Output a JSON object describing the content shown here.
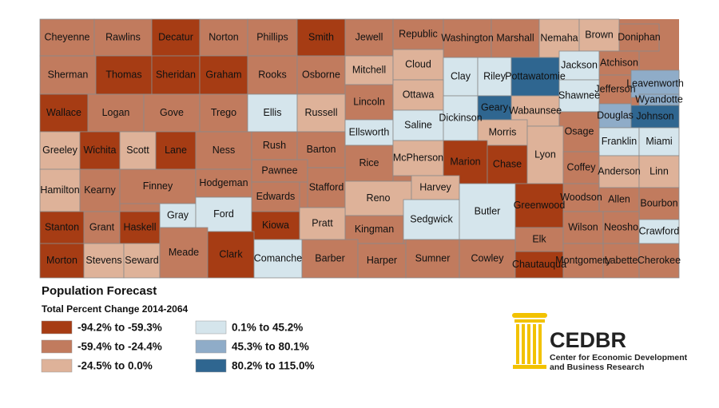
{
  "map": {
    "counties": [
      {
        "name": "Cheyenne",
        "color": "#c17b5e"
      },
      {
        "name": "Rawlins",
        "color": "#c17b5e"
      },
      {
        "name": "Decatur",
        "color": "#a63c14"
      },
      {
        "name": "Norton",
        "color": "#c17b5e"
      },
      {
        "name": "Phillips",
        "color": "#c17b5e"
      },
      {
        "name": "Smith",
        "color": "#a63c14"
      },
      {
        "name": "Jewell",
        "color": "#c17b5e"
      },
      {
        "name": "Republic",
        "color": "#c17b5e"
      },
      {
        "name": "Washington",
        "color": "#c17b5e"
      },
      {
        "name": "Marshall",
        "color": "#c17b5e"
      },
      {
        "name": "Nemaha",
        "color": "#deb299"
      },
      {
        "name": "Brown",
        "color": "#deb299"
      },
      {
        "name": "Doniphan",
        "color": "#c17b5e"
      },
      {
        "name": "Sherman",
        "color": "#c17b5e"
      },
      {
        "name": "Thomas",
        "color": "#a63c14"
      },
      {
        "name": "Sheridan",
        "color": "#a63c14"
      },
      {
        "name": "Graham",
        "color": "#a63c14"
      },
      {
        "name": "Rooks",
        "color": "#c17b5e"
      },
      {
        "name": "Osborne",
        "color": "#c17b5e"
      },
      {
        "name": "Mitchell",
        "color": "#deb299"
      },
      {
        "name": "Cloud",
        "color": "#deb299"
      },
      {
        "name": "Clay",
        "color": "#d5e5ec"
      },
      {
        "name": "Riley",
        "color": "#d5e5ec"
      },
      {
        "name": "Pottawatomie",
        "color": "#2f6690"
      },
      {
        "name": "Jackson",
        "color": "#d5e5ec"
      },
      {
        "name": "Atchison",
        "color": "#c17b5e"
      },
      {
        "name": "Jefferson",
        "color": "#c17b5e"
      },
      {
        "name": "Leavenworth",
        "color": "#8facc8"
      },
      {
        "name": "Wyandotte",
        "color": "#8facc8"
      },
      {
        "name": "Shawnee",
        "color": "#d5e5ec"
      },
      {
        "name": "Wabaunsee",
        "color": "#deb299"
      },
      {
        "name": "Geary",
        "color": "#2f6690"
      },
      {
        "name": "Lincoln",
        "color": "#c17b5e"
      },
      {
        "name": "Ottawa",
        "color": "#deb299"
      },
      {
        "name": "Wallace",
        "color": "#a63c14"
      },
      {
        "name": "Logan",
        "color": "#c17b5e"
      },
      {
        "name": "Gove",
        "color": "#c17b5e"
      },
      {
        "name": "Trego",
        "color": "#c17b5e"
      },
      {
        "name": "Ellis",
        "color": "#d5e5ec"
      },
      {
        "name": "Russell",
        "color": "#deb299"
      },
      {
        "name": "Ellsworth",
        "color": "#d5e5ec"
      },
      {
        "name": "Saline",
        "color": "#d5e5ec"
      },
      {
        "name": "Dickinson",
        "color": "#d5e5ec"
      },
      {
        "name": "Morris",
        "color": "#deb299"
      },
      {
        "name": "Douglas",
        "color": "#8facc8"
      },
      {
        "name": "Johnson",
        "color": "#2f6690"
      },
      {
        "name": "Osage",
        "color": "#c17b5e"
      },
      {
        "name": "Greeley",
        "color": "#deb299"
      },
      {
        "name": "Wichita",
        "color": "#a63c14"
      },
      {
        "name": "Scott",
        "color": "#deb299"
      },
      {
        "name": "Lane",
        "color": "#a63c14"
      },
      {
        "name": "Ness",
        "color": "#c17b5e"
      },
      {
        "name": "Rush",
        "color": "#c17b5e"
      },
      {
        "name": "Barton",
        "color": "#c17b5e"
      },
      {
        "name": "Rice",
        "color": "#c17b5e"
      },
      {
        "name": "McPherson",
        "color": "#deb299"
      },
      {
        "name": "Marion",
        "color": "#a63c14"
      },
      {
        "name": "Chase",
        "color": "#a63c14"
      },
      {
        "name": "Lyon",
        "color": "#deb299"
      },
      {
        "name": "Franklin",
        "color": "#d5e5ec"
      },
      {
        "name": "Miami",
        "color": "#d5e5ec"
      },
      {
        "name": "Hamilton",
        "color": "#deb299"
      },
      {
        "name": "Kearny",
        "color": "#c17b5e"
      },
      {
        "name": "Finney",
        "color": "#c17b5e"
      },
      {
        "name": "Hodgeman",
        "color": "#c17b5e"
      },
      {
        "name": "Pawnee",
        "color": "#c17b5e"
      },
      {
        "name": "Edwards",
        "color": "#c17b5e"
      },
      {
        "name": "Stafford",
        "color": "#c17b5e"
      },
      {
        "name": "Reno",
        "color": "#deb299"
      },
      {
        "name": "Harvey",
        "color": "#deb299"
      },
      {
        "name": "Coffey",
        "color": "#c17b5e"
      },
      {
        "name": "Anderson",
        "color": "#deb299"
      },
      {
        "name": "Linn",
        "color": "#deb299"
      },
      {
        "name": "Woodson",
        "color": "#c17b5e"
      },
      {
        "name": "Greenwood",
        "color": "#a63c14"
      },
      {
        "name": "Allen",
        "color": "#c17b5e"
      },
      {
        "name": "Bourbon",
        "color": "#c17b5e"
      },
      {
        "name": "Gray",
        "color": "#d5e5ec"
      },
      {
        "name": "Ford",
        "color": "#d5e5ec"
      },
      {
        "name": "Stanton",
        "color": "#a63c14"
      },
      {
        "name": "Grant",
        "color": "#c17b5e"
      },
      {
        "name": "Haskell",
        "color": "#a63c14"
      },
      {
        "name": "Kiowa",
        "color": "#a63c14"
      },
      {
        "name": "Pratt",
        "color": "#deb299"
      },
      {
        "name": "Kingman",
        "color": "#c17b5e"
      },
      {
        "name": "Sedgwick",
        "color": "#d5e5ec"
      },
      {
        "name": "Butler",
        "color": "#d5e5ec"
      },
      {
        "name": "Elk",
        "color": "#c17b5e"
      },
      {
        "name": "Wilson",
        "color": "#c17b5e"
      },
      {
        "name": "Neosho",
        "color": "#c17b5e"
      },
      {
        "name": "Crawford",
        "color": "#d5e5ec"
      },
      {
        "name": "Morton",
        "color": "#a63c14"
      },
      {
        "name": "Stevens",
        "color": "#deb299"
      },
      {
        "name": "Seward",
        "color": "#deb299"
      },
      {
        "name": "Meade",
        "color": "#c17b5e"
      },
      {
        "name": "Clark",
        "color": "#a63c14"
      },
      {
        "name": "Comanche",
        "color": "#d5e5ec"
      },
      {
        "name": "Barber",
        "color": "#c17b5e"
      },
      {
        "name": "Harper",
        "color": "#c17b5e"
      },
      {
        "name": "Sumner",
        "color": "#c17b5e"
      },
      {
        "name": "Cowley",
        "color": "#c17b5e"
      },
      {
        "name": "Chautauqua",
        "color": "#a63c14"
      },
      {
        "name": "Montgomery",
        "color": "#c17b5e"
      },
      {
        "name": "Labette",
        "color": "#c17b5e"
      },
      {
        "name": "Cherokee",
        "color": "#c17b5e"
      }
    ],
    "legend": {
      "title": "Population Forecast",
      "subtitle": "Total Percent Change 2014-2064",
      "items": [
        {
          "label": "-94.2% to -59.3%",
          "color": "#a63c14"
        },
        {
          "label": "-59.4% to -24.4%",
          "color": "#c17b5e"
        },
        {
          "label": "-24.5% to 0.0%",
          "color": "#deb299"
        },
        {
          "label": "0.1% to 45.2%",
          "color": "#d5e5ec"
        },
        {
          "label": "45.3% to 80.1%",
          "color": "#8facc8"
        },
        {
          "label": "80.2% to 115.0%",
          "color": "#2f6690"
        }
      ]
    },
    "logo": {
      "name": "CEDBR",
      "line1": "Center for Economic Development",
      "line2": "and Business Research"
    }
  }
}
